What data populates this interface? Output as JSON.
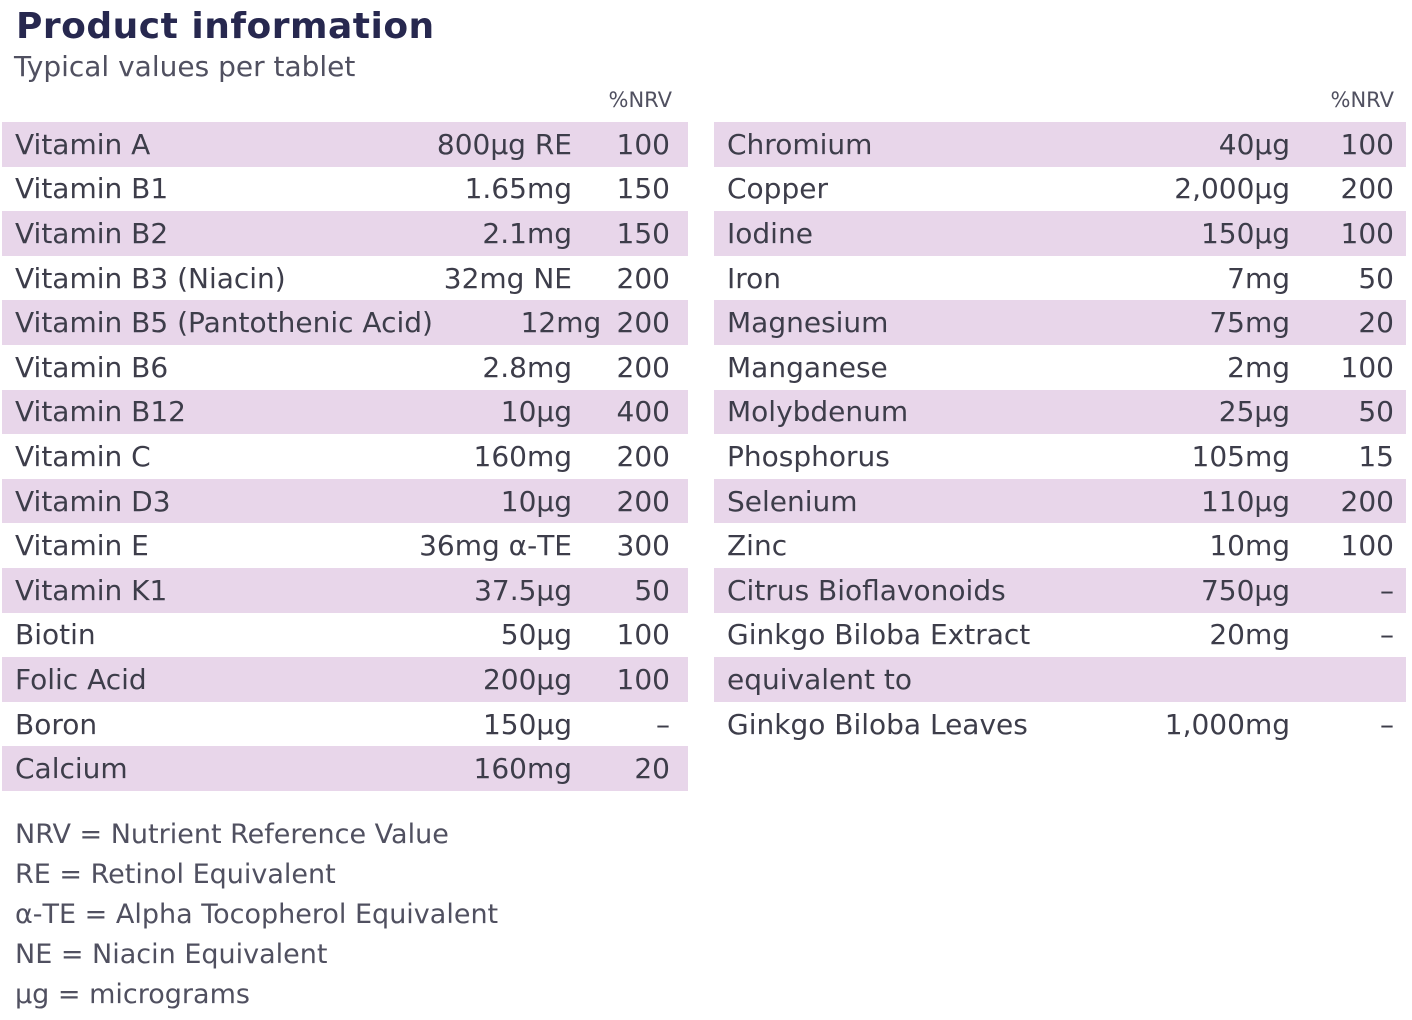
{
  "header": {
    "title": "Product information",
    "subtitle": "Typical values per tablet"
  },
  "left_table": {
    "nrv_header": "%NRV",
    "rows": [
      {
        "name": "Vitamin A",
        "amount": "800µg RE",
        "nrv": "100"
      },
      {
        "name": "Vitamin B1",
        "amount": "1.65mg",
        "nrv": "150"
      },
      {
        "name": "Vitamin B2",
        "amount": "2.1mg",
        "nrv": "150"
      },
      {
        "name": "Vitamin B3 (Niacin)",
        "amount": "32mg NE",
        "nrv": "200"
      },
      {
        "name": "Vitamin B5 (Pantothenic Acid)",
        "amount": "12mg",
        "nrv": "200"
      },
      {
        "name": "Vitamin B6",
        "amount": "2.8mg",
        "nrv": "200"
      },
      {
        "name": "Vitamin B12",
        "amount": "10µg",
        "nrv": "400"
      },
      {
        "name": "Vitamin C",
        "amount": "160mg",
        "nrv": "200"
      },
      {
        "name": "Vitamin D3",
        "amount": "10µg",
        "nrv": "200"
      },
      {
        "name": "Vitamin E",
        "amount": "36mg α-TE",
        "nrv": "300"
      },
      {
        "name": "Vitamin K1",
        "amount": "37.5µg",
        "nrv": "50"
      },
      {
        "name": "Biotin",
        "amount": "50µg",
        "nrv": "100"
      },
      {
        "name": "Folic Acid",
        "amount": "200µg",
        "nrv": "100"
      },
      {
        "name": "Boron",
        "amount": "150µg",
        "nrv": "–"
      },
      {
        "name": "Calcium",
        "amount": "160mg",
        "nrv": "20"
      }
    ]
  },
  "right_table": {
    "nrv_header": "%NRV",
    "rows": [
      {
        "name": "Chromium",
        "amount": "40µg",
        "nrv": "100"
      },
      {
        "name": "Copper",
        "amount": "2,000µg",
        "nrv": "200"
      },
      {
        "name": "Iodine",
        "amount": "150µg",
        "nrv": "100"
      },
      {
        "name": "Iron",
        "amount": "7mg",
        "nrv": "50"
      },
      {
        "name": "Magnesium",
        "amount": "75mg",
        "nrv": "20"
      },
      {
        "name": "Manganese",
        "amount": "2mg",
        "nrv": "100"
      },
      {
        "name": "Molybdenum",
        "amount": "25µg",
        "nrv": "50"
      },
      {
        "name": "Phosphorus",
        "amount": "105mg",
        "nrv": "15"
      },
      {
        "name": "Selenium",
        "amount": "110µg",
        "nrv": "200"
      },
      {
        "name": "Zinc",
        "amount": "10mg",
        "nrv": "100"
      },
      {
        "name": "Citrus Bioflavonoids",
        "amount": "750µg",
        "nrv": "–"
      },
      {
        "name": "Ginkgo Biloba Extract",
        "amount": "20mg",
        "nrv": "–"
      },
      {
        "name": "equivalent to",
        "amount": "",
        "nrv": ""
      },
      {
        "name": "Ginkgo Biloba Leaves",
        "amount": "1,000mg",
        "nrv": "–"
      }
    ]
  },
  "footnotes": [
    "NRV = Nutrient Reference Value",
    "RE = Retinol Equivalent",
    "α-TE = Alpha Tocopherol Equivalent",
    "NE = Niacin Equivalent",
    "µg = micrograms"
  ],
  "colors": {
    "title": "#27284f",
    "row_shade": "#e8d6ea",
    "text": "#3d3d4a"
  }
}
